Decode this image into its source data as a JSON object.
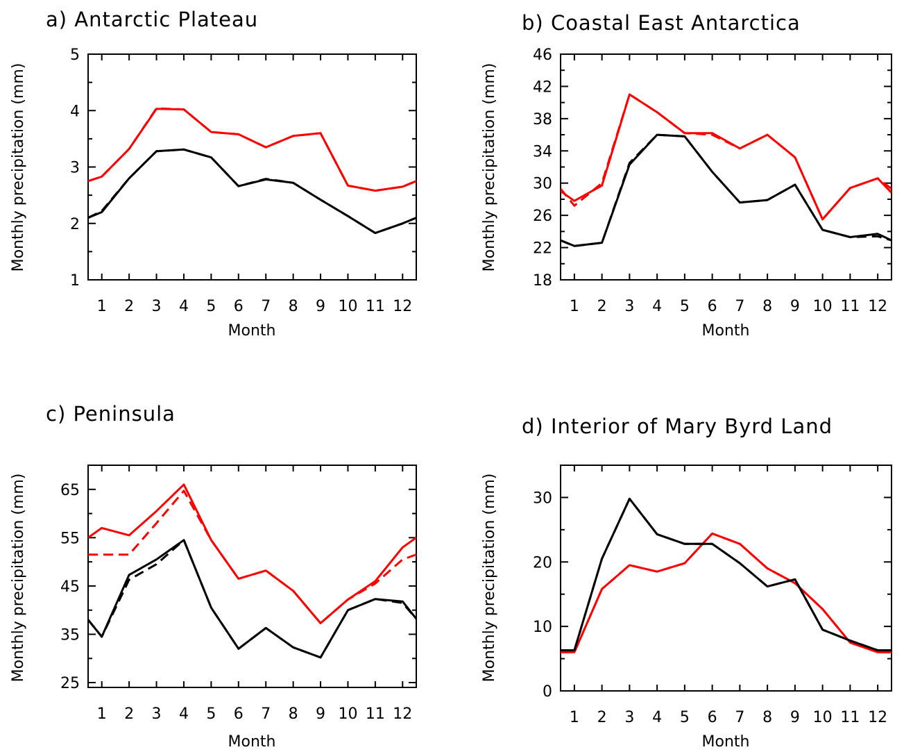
{
  "colors": {
    "red": "#ff0000",
    "black": "#000000"
  },
  "chart_data": [
    {
      "type": "line",
      "title": "a) Antarctic Plateau",
      "xlabel": "Month",
      "ylabel": "Monthly precipitation (mm)",
      "x": [
        0.5,
        1,
        2,
        3,
        4,
        5,
        6,
        7,
        8,
        9,
        10,
        11,
        12,
        12.5
      ],
      "xticks": [
        "1",
        "2",
        "3",
        "4",
        "5",
        "6",
        "7",
        "8",
        "9",
        "10",
        "11",
        "12"
      ],
      "xlim": [
        0.5,
        12.5
      ],
      "ylim": [
        1,
        5
      ],
      "yticks": [
        "1",
        "2",
        "3",
        "4",
        "5"
      ],
      "grid": false,
      "series": [
        {
          "color": "#ff0000",
          "dash": "solid",
          "values": [
            2.75,
            2.83,
            3.32,
            4.03,
            4.02,
            3.62,
            3.58,
            3.35,
            3.55,
            3.6,
            2.67,
            2.58,
            2.65,
            2.75
          ]
        },
        {
          "color": "#ff0000",
          "dash": "dashed",
          "values": [
            2.75,
            2.83,
            3.32,
            4.04,
            4.02,
            3.62,
            3.58,
            3.35,
            3.55,
            3.6,
            2.67,
            2.58,
            2.65,
            2.75
          ]
        },
        {
          "color": "#000000",
          "dash": "solid",
          "values": [
            2.1,
            2.2,
            2.8,
            3.28,
            3.31,
            3.17,
            2.66,
            2.78,
            2.72,
            2.42,
            2.13,
            1.83,
            2.0,
            2.1
          ]
        },
        {
          "color": "#000000",
          "dash": "dashed",
          "values": [
            2.1,
            2.22,
            2.8,
            3.28,
            3.31,
            3.17,
            2.66,
            2.79,
            2.72,
            2.42,
            2.13,
            1.83,
            2.0,
            2.1
          ]
        }
      ]
    },
    {
      "type": "line",
      "title": "b) Coastal East Antarctica",
      "xlabel": "Month",
      "ylabel": "Monthly precipitation (mm)",
      "x": [
        0.5,
        1,
        2,
        3,
        4,
        5,
        6,
        7,
        8,
        9,
        10,
        11,
        12,
        12.5
      ],
      "xticks": [
        "1",
        "2",
        "3",
        "4",
        "5",
        "6",
        "7",
        "8",
        "9",
        "10",
        "11",
        "12"
      ],
      "xlim": [
        0.5,
        12.5
      ],
      "ylim": [
        18,
        46
      ],
      "yticks": [
        "18",
        "22",
        "26",
        "30",
        "34",
        "38",
        "42",
        "46"
      ],
      "grid": false,
      "series": [
        {
          "color": "#ff0000",
          "dash": "solid",
          "values": [
            29.0,
            27.8,
            29.7,
            41.0,
            38.8,
            36.2,
            36.2,
            34.3,
            36.0,
            33.2,
            25.5,
            29.4,
            30.6,
            28.8
          ]
        },
        {
          "color": "#ff0000",
          "dash": "dashed",
          "values": [
            29.3,
            27.2,
            30.0,
            41.0,
            38.8,
            36.2,
            36.0,
            34.3,
            36.0,
            33.2,
            25.5,
            29.4,
            30.6,
            29.3
          ]
        },
        {
          "color": "#000000",
          "dash": "solid",
          "values": [
            22.9,
            22.2,
            22.6,
            32.3,
            36.0,
            35.8,
            31.4,
            27.6,
            27.9,
            29.8,
            24.2,
            23.3,
            23.7,
            22.9
          ]
        },
        {
          "color": "#000000",
          "dash": "dashed",
          "values": [
            22.9,
            22.2,
            22.6,
            32.5,
            36.0,
            35.8,
            31.4,
            27.6,
            27.9,
            29.8,
            24.2,
            23.3,
            23.4,
            22.9
          ]
        }
      ]
    },
    {
      "type": "line",
      "title": "c) Peninsula",
      "xlabel": "Month",
      "ylabel": "Monthly precipitation (mm)",
      "x": [
        0.5,
        1,
        2,
        3,
        4,
        5,
        6,
        7,
        8,
        9,
        10,
        11,
        12,
        12.5
      ],
      "xticks": [
        "1",
        "2",
        "3",
        "4",
        "5",
        "6",
        "7",
        "8",
        "9",
        "10",
        "11",
        "12"
      ],
      "xlim": [
        0.5,
        12.5
      ],
      "ylim": [
        24,
        70
      ],
      "yticks": [
        "25",
        "35",
        "45",
        "55",
        "65"
      ],
      "grid": false,
      "series": [
        {
          "color": "#ff0000",
          "dash": "solid",
          "values": [
            55.0,
            57.0,
            55.5,
            60.5,
            66.0,
            54.5,
            46.5,
            48.2,
            44.0,
            37.3,
            42.2,
            46.0,
            53.0,
            55.0
          ]
        },
        {
          "color": "#ff0000",
          "dash": "dashed",
          "values": [
            51.5,
            51.5,
            51.5,
            58.0,
            64.7,
            54.5,
            46.5,
            48.2,
            44.0,
            37.3,
            42.2,
            45.5,
            50.5,
            51.5
          ]
        },
        {
          "color": "#000000",
          "dash": "solid",
          "values": [
            38.0,
            34.5,
            47.3,
            50.5,
            54.5,
            40.5,
            32.0,
            36.3,
            32.3,
            30.2,
            40.0,
            42.3,
            41.8,
            38.2
          ]
        },
        {
          "color": "#000000",
          "dash": "dashed",
          "values": [
            38.0,
            34.5,
            46.3,
            49.5,
            54.5,
            40.5,
            32.0,
            36.3,
            32.3,
            30.2,
            40.0,
            42.3,
            41.5,
            38.2
          ]
        }
      ]
    },
    {
      "type": "line",
      "title": "d) Interior of Mary Byrd Land",
      "xlabel": "Month",
      "ylabel": "Monthly precipitation (mm)",
      "x": [
        0.5,
        1,
        2,
        3,
        4,
        5,
        6,
        7,
        8,
        9,
        10,
        11,
        12,
        12.5
      ],
      "xticks": [
        "1",
        "2",
        "3",
        "4",
        "5",
        "6",
        "7",
        "8",
        "9",
        "10",
        "11",
        "12"
      ],
      "xlim": [
        0.5,
        12.5
      ],
      "ylim": [
        0,
        35
      ],
      "yticks": [
        "0",
        "10",
        "20",
        "30"
      ],
      "grid": false,
      "series": [
        {
          "color": "#ff0000",
          "dash": "solid",
          "values": [
            6.0,
            6.0,
            15.8,
            19.5,
            18.5,
            19.8,
            24.4,
            22.8,
            19.0,
            16.7,
            12.7,
            7.5,
            6.0,
            6.0
          ]
        },
        {
          "color": "#ff0000",
          "dash": "dashed",
          "values": [
            6.0,
            6.0,
            15.8,
            19.5,
            18.5,
            19.8,
            24.4,
            22.8,
            19.0,
            16.7,
            12.7,
            7.5,
            6.0,
            6.0
          ]
        },
        {
          "color": "#000000",
          "dash": "solid",
          "values": [
            6.3,
            6.3,
            20.5,
            29.8,
            24.3,
            22.8,
            22.8,
            19.8,
            16.2,
            17.3,
            9.5,
            7.8,
            6.3,
            6.3
          ]
        },
        {
          "color": "#000000",
          "dash": "dashed",
          "values": [
            6.3,
            6.3,
            20.5,
            29.8,
            24.3,
            22.8,
            22.8,
            19.8,
            16.2,
            17.3,
            9.5,
            7.8,
            6.3,
            6.3
          ]
        }
      ]
    }
  ]
}
